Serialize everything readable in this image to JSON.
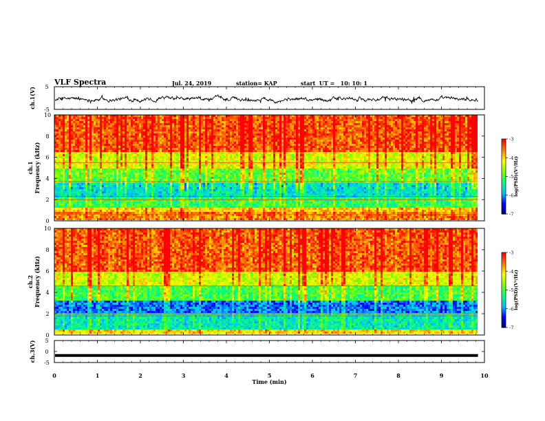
{
  "header": {
    "title": "VLF Spectra",
    "date": "Jul. 24, 2019",
    "station": "station= KAP",
    "start": "start  UT =   10: 10: 1"
  },
  "chart_data": [
    {
      "type": "line",
      "panel": "ch1-waveform",
      "ylabel": "ch.1(V)",
      "ylim": [
        -5,
        5
      ],
      "yticks": [
        "5",
        "-5"
      ],
      "xlim": [
        0,
        10
      ],
      "trace_color": "#000000",
      "note_values": "dense noisy waveform between about -1.5 and 0.5 V"
    },
    {
      "type": "heatmap",
      "panel": "ch1-spectrogram",
      "ylabel": "ch.1\nFrequency (kHz)",
      "ylabel_lines": [
        "ch.1",
        "Frequency (kHz)"
      ],
      "ylim": [
        0,
        10
      ],
      "yticks": [
        "0",
        "2",
        "4",
        "6",
        "8",
        "10"
      ],
      "xlim": [
        0,
        9.85
      ],
      "colorbar": {
        "label": "log(PSD)(V²/Hz)",
        "range": [
          -7,
          -3
        ],
        "ticks": [
          "-3",
          "-4",
          "-5",
          "-6",
          "-7"
        ]
      },
      "bands": [
        {
          "freq_kHz": [
            0,
            0.8
          ],
          "level": -3.6
        },
        {
          "freq_kHz": [
            0.8,
            1.2
          ],
          "level": -4.0
        },
        {
          "freq_kHz": [
            1.2,
            2.2
          ],
          "level": -5.1
        },
        {
          "freq_kHz": [
            2.2,
            3.6
          ],
          "level": -5.6
        },
        {
          "freq_kHz": [
            3.6,
            5.0
          ],
          "level": -4.9
        },
        {
          "freq_kHz": [
            5.0,
            6.5
          ],
          "level": -4.3
        },
        {
          "freq_kHz": [
            6.5,
            10.0
          ],
          "level": -3.4
        }
      ],
      "tones_kHz": [
        0.6,
        2.0,
        2.3,
        3.7,
        5.5
      ]
    },
    {
      "type": "heatmap",
      "panel": "ch2-spectrogram",
      "ylabel": "ch.2\nFrequency (kHz)",
      "ylabel_lines": [
        "ch.2",
        "Frequency (kHz)"
      ],
      "ylim": [
        0,
        10
      ],
      "yticks": [
        "0",
        "2",
        "4",
        "6",
        "8",
        "10"
      ],
      "xlim": [
        0,
        9.85
      ],
      "colorbar": {
        "label": "log(PSD)(V²/Hz)",
        "range": [
          -7,
          -3
        ],
        "ticks": [
          "-3",
          "-4",
          "-5",
          "-6",
          "-7"
        ]
      },
      "bands": [
        {
          "freq_kHz": [
            0,
            0.5
          ],
          "level": -4.0
        },
        {
          "freq_kHz": [
            0.5,
            2.0
          ],
          "level": -5.5
        },
        {
          "freq_kHz": [
            2.0,
            3.2
          ],
          "level": -6.1
        },
        {
          "freq_kHz": [
            3.2,
            4.5
          ],
          "level": -5.0
        },
        {
          "freq_kHz": [
            4.5,
            6.0
          ],
          "level": -4.3
        },
        {
          "freq_kHz": [
            6.0,
            10.0
          ],
          "level": -3.4
        }
      ],
      "tones_kHz": [
        1.8,
        2.0,
        4.6
      ]
    },
    {
      "type": "line",
      "panel": "ch3-waveform",
      "ylabel": "ch.3(V)",
      "ylim": [
        -5,
        5
      ],
      "yticks": [
        "5",
        "0",
        "-5"
      ],
      "xlim": [
        0,
        10
      ],
      "value": -1.8,
      "trace_color": "#000000"
    }
  ],
  "xaxis": {
    "label": "Time (min)",
    "ticks": [
      "0",
      "1",
      "2",
      "3",
      "4",
      "5",
      "6",
      "7",
      "8",
      "9",
      "10"
    ]
  },
  "colors": {
    "cmap": [
      "#00007f",
      "#0000ff",
      "#00bfff",
      "#00ff7f",
      "#7fff00",
      "#ffff00",
      "#ff7f00",
      "#ff0000"
    ]
  }
}
